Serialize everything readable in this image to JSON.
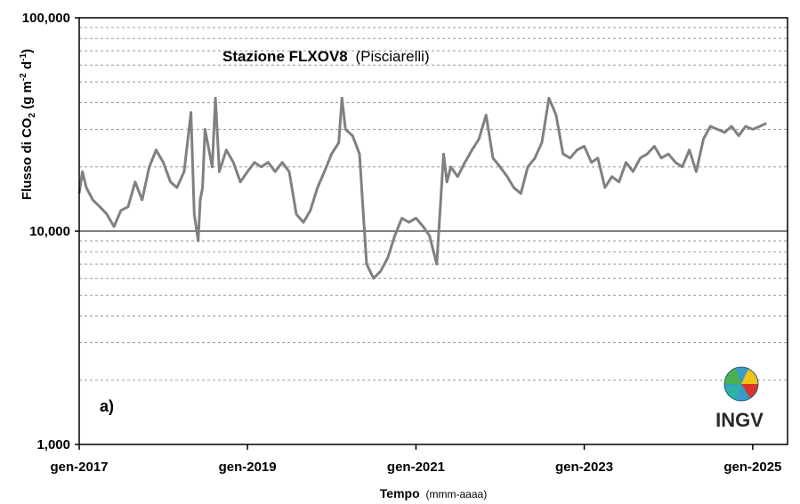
{
  "chart_data": {
    "type": "line",
    "title_main": "Stazione FLXOV8",
    "title_sub": "(Pisciarelli)",
    "panel_label": "a)",
    "xlabel_main": "Tempo",
    "xlabel_unit": "(mmm-aaaa)",
    "ylabel_parts": [
      "Flusso di CO",
      "2",
      " (g m",
      "-2",
      " d",
      "-1",
      ")"
    ],
    "y_scale": "log",
    "ylim": [
      1000,
      100000
    ],
    "y_ticks": [
      {
        "value": 1000,
        "label": "1,000"
      },
      {
        "value": 10000,
        "label": "10,000"
      },
      {
        "value": 100000,
        "label": "100,000"
      }
    ],
    "x_ticks": [
      {
        "value": "2017-01-01",
        "label": "gen-2017"
      },
      {
        "value": "2019-01-01",
        "label": "gen-2019"
      },
      {
        "value": "2021-01-01",
        "label": "gen-2021"
      },
      {
        "value": "2023-01-01",
        "label": "gen-2023"
      },
      {
        "value": "2025-01-01",
        "label": "gen-2025"
      }
    ],
    "xlim": [
      "2017-01-01",
      "2025-06-01"
    ],
    "grid": "horizontal dashed minor, solid at 10,000",
    "series_color": "#808080",
    "series": [
      {
        "x": [
          "2017-01-01",
          "2017-01-15",
          "2017-02-01",
          "2017-03-01",
          "2017-04-01",
          "2017-05-01",
          "2017-06-01",
          "2017-07-01",
          "2017-08-01",
          "2017-09-01",
          "2017-10-01",
          "2017-11-01",
          "2017-12-01",
          "2018-01-01",
          "2018-02-01",
          "2018-03-01",
          "2018-04-01",
          "2018-05-01",
          "2018-05-15",
          "2018-06-01",
          "2018-06-10",
          "2018-06-20",
          "2018-07-01",
          "2018-08-01",
          "2018-08-15",
          "2018-09-01",
          "2018-10-01",
          "2018-11-01",
          "2018-12-01",
          "2019-01-01",
          "2019-02-01",
          "2019-03-01",
          "2019-04-01",
          "2019-05-01",
          "2019-06-01",
          "2019-07-01",
          "2019-08-01",
          "2019-09-01",
          "2019-10-01",
          "2019-11-01",
          "2019-12-01",
          "2020-01-01",
          "2020-02-01",
          "2020-02-15",
          "2020-03-01",
          "2020-04-01",
          "2020-05-01",
          "2020-05-20",
          "2020-06-01",
          "2020-07-01",
          "2020-08-01",
          "2020-09-01",
          "2020-10-01",
          "2020-11-01",
          "2020-12-01",
          "2021-01-01",
          "2021-02-01",
          "2021-03-01",
          "2021-04-01",
          "2021-05-01",
          "2021-05-15",
          "2021-06-01",
          "2021-07-01",
          "2021-08-01",
          "2021-09-01",
          "2021-10-01",
          "2021-11-01",
          "2021-12-01",
          "2022-01-01",
          "2022-02-01",
          "2022-03-01",
          "2022-04-01",
          "2022-05-01",
          "2022-06-01",
          "2022-07-01",
          "2022-08-01",
          "2022-09-01",
          "2022-10-01",
          "2022-11-01",
          "2022-12-01",
          "2023-01-01",
          "2023-02-01",
          "2023-03-01",
          "2023-04-01",
          "2023-05-01",
          "2023-06-01",
          "2023-07-01",
          "2023-08-01",
          "2023-09-01",
          "2023-10-01",
          "2023-11-01",
          "2023-12-01",
          "2024-01-01",
          "2024-02-01",
          "2024-03-01",
          "2024-04-01",
          "2024-05-01",
          "2024-06-01",
          "2024-07-01",
          "2024-08-01",
          "2024-09-01",
          "2024-10-01",
          "2024-11-01",
          "2024-12-01",
          "2025-01-01",
          "2025-02-01",
          "2025-03-01"
        ],
        "y": [
          15000,
          19000,
          16000,
          14000,
          13000,
          12000,
          10500,
          12500,
          13000,
          17000,
          14000,
          20000,
          24000,
          21000,
          17000,
          16000,
          19000,
          36000,
          12000,
          9000,
          14000,
          16000,
          30000,
          20000,
          42000,
          19000,
          24000,
          21000,
          17000,
          19000,
          21000,
          20000,
          21000,
          19000,
          21000,
          19000,
          12000,
          11000,
          12500,
          16000,
          19000,
          23000,
          26000,
          42000,
          30000,
          28000,
          23000,
          11000,
          7000,
          6000,
          6500,
          7500,
          9500,
          11500,
          11000,
          11500,
          10500,
          9500,
          7000,
          23000,
          17000,
          20000,
          18000,
          21000,
          24000,
          27000,
          35000,
          22000,
          20000,
          18000,
          16000,
          15000,
          20000,
          22000,
          26000,
          42000,
          35000,
          23000,
          22000,
          24000,
          25000,
          21000,
          22000,
          16000,
          18000,
          17000,
          21000,
          19000,
          22000,
          23000,
          25000,
          22000,
          23000,
          21000,
          20000,
          24000,
          19000,
          27000,
          31000,
          30000,
          29000,
          31000,
          28000,
          31000,
          30000,
          31000,
          32000
        ]
      }
    ],
    "logo": {
      "name": "ingv-logo",
      "text": "INGV"
    }
  }
}
